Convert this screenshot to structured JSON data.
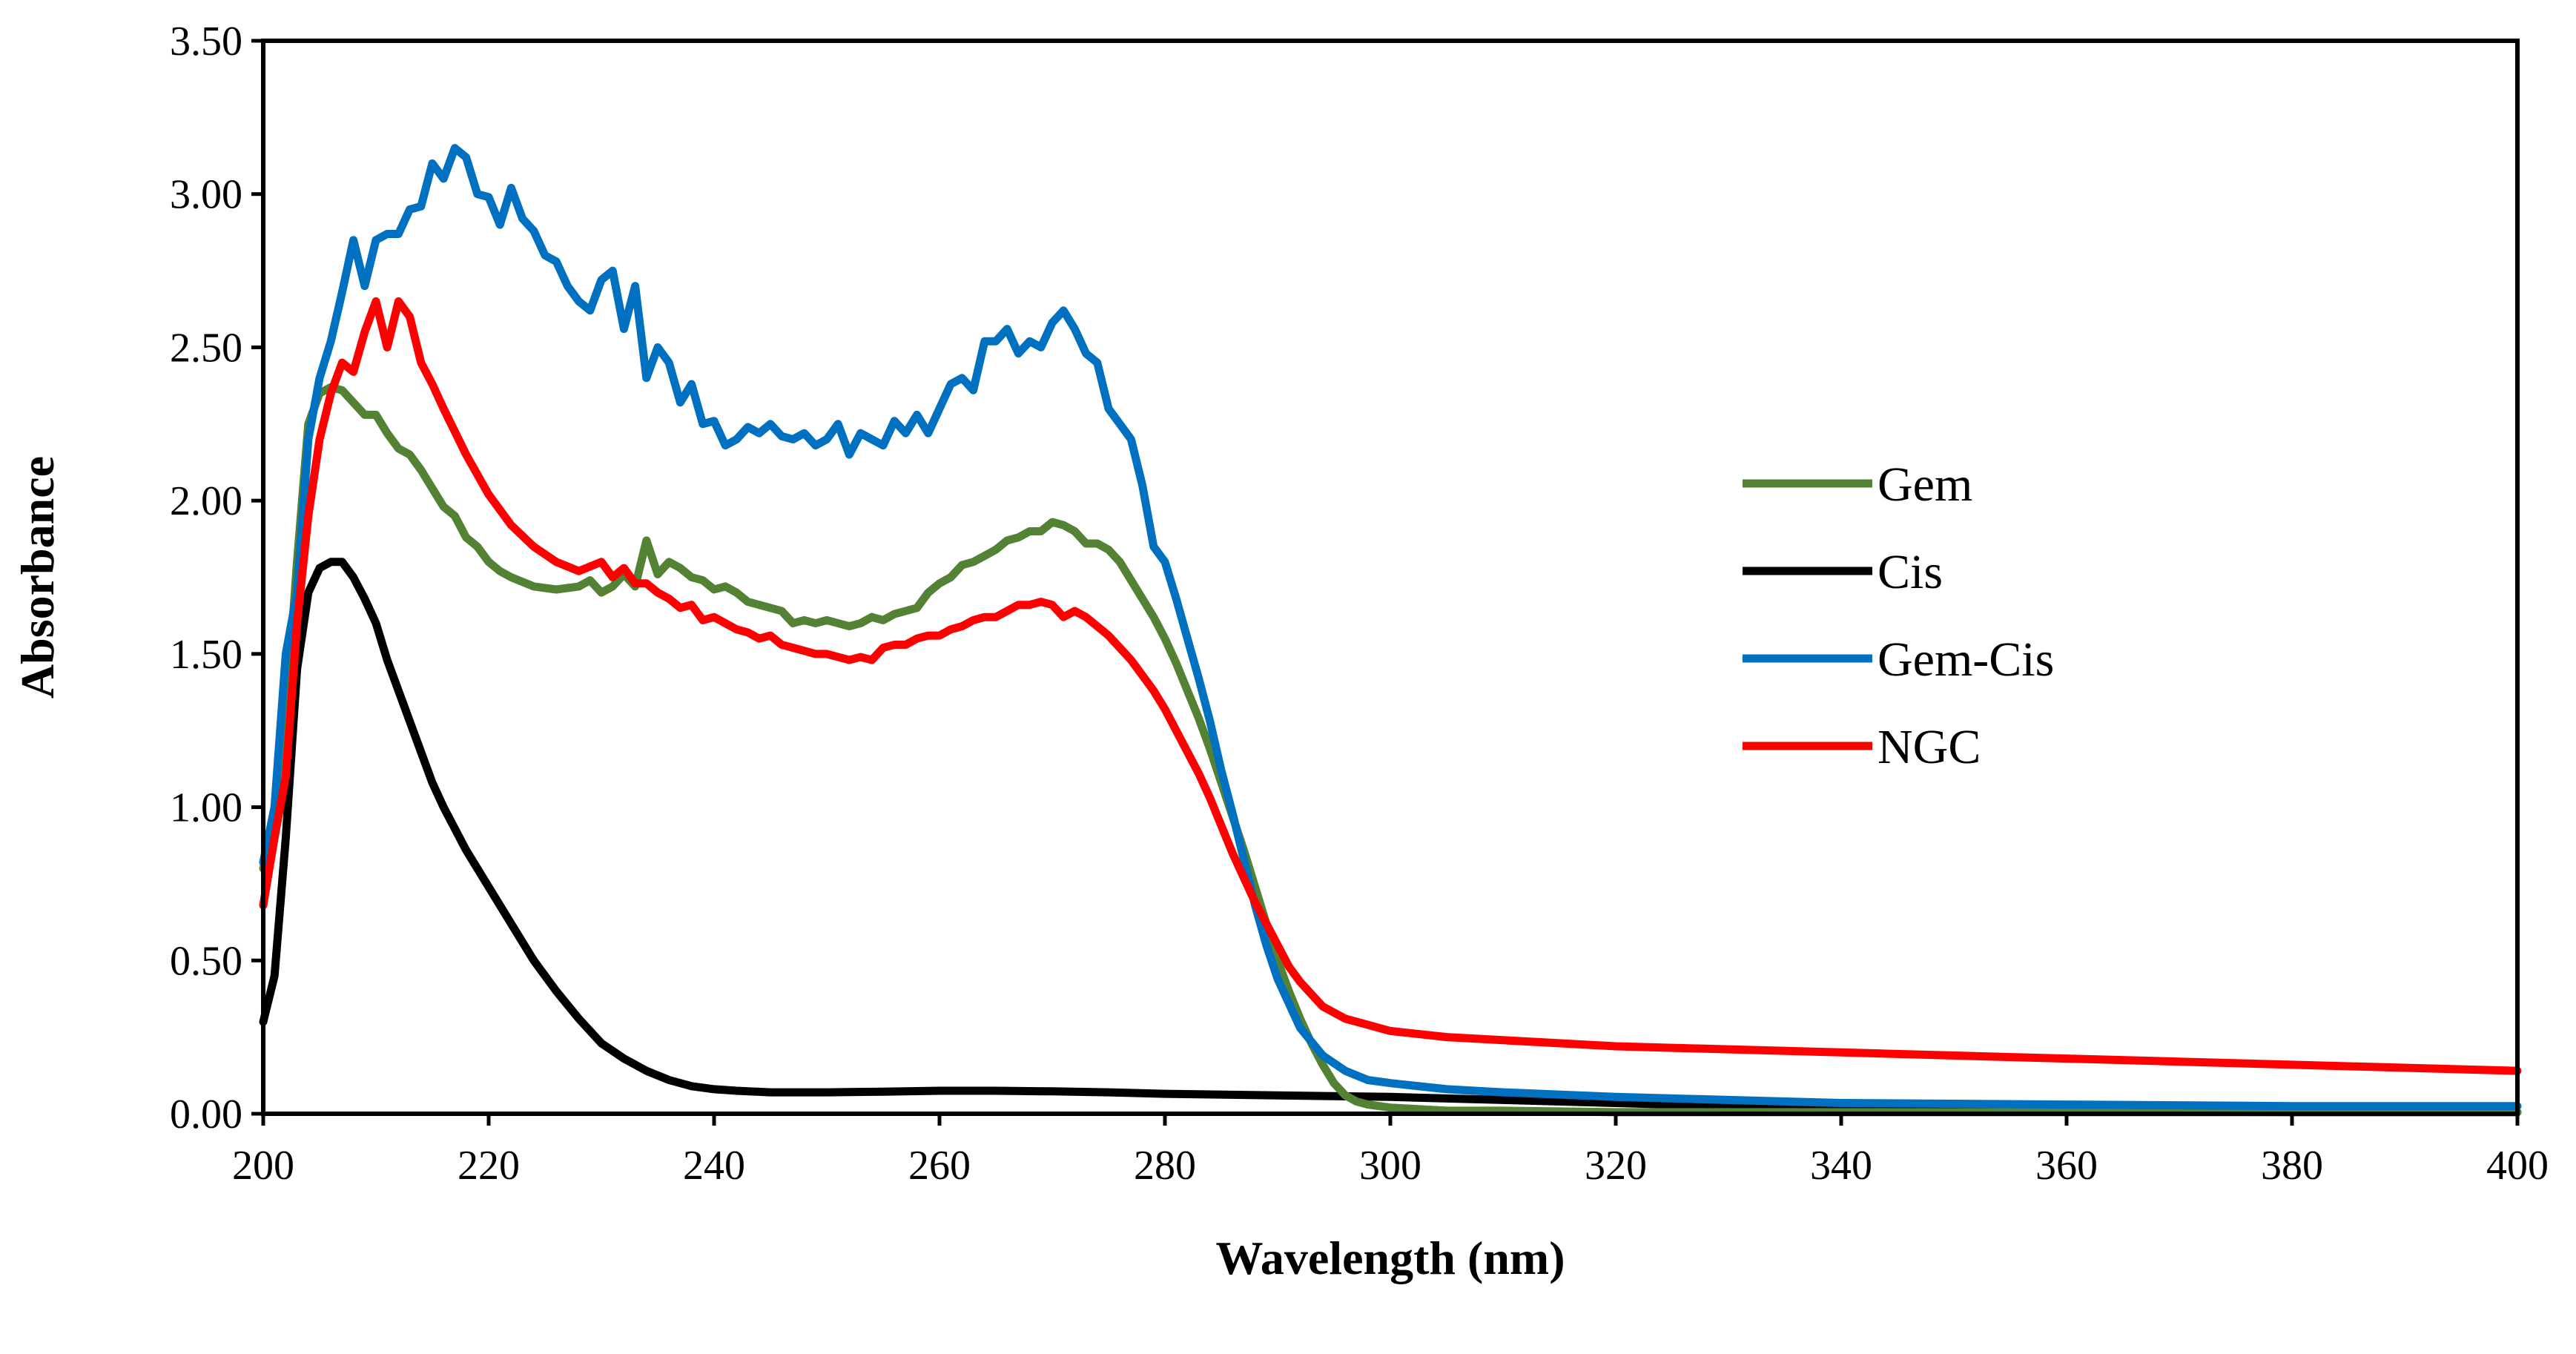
{
  "chart_data": {
    "type": "line",
    "title": "",
    "xlabel": "Wavelength (nm)",
    "ylabel": "Absorbance",
    "xlim": [
      200,
      400
    ],
    "ylim": [
      0,
      3.5
    ],
    "xticks": [
      200,
      220,
      240,
      260,
      280,
      300,
      320,
      340,
      360,
      380,
      400
    ],
    "xtick_labels": [
      "200",
      "220",
      "240",
      "260",
      "280",
      "300",
      "320",
      "340",
      "360",
      "380",
      "400"
    ],
    "yticks": [
      0,
      0.5,
      1,
      1.5,
      2,
      2.5,
      3,
      3.5
    ],
    "ytick_labels": [
      "0.00",
      "0.50",
      "1.00",
      "1.50",
      "2.00",
      "2.50",
      "3.00",
      "3.50"
    ],
    "grid": false,
    "legend_position": "right",
    "series": [
      {
        "name": "Gem",
        "color": "#548235",
        "x": [
          200,
          201,
          202,
          203,
          204,
          205,
          206,
          207,
          208,
          209,
          210,
          211,
          212,
          213,
          214,
          215,
          216,
          217,
          218,
          219,
          220,
          221,
          222,
          224,
          226,
          228,
          229,
          230,
          231,
          232,
          233,
          234,
          235,
          236,
          237,
          238,
          239,
          240,
          241,
          242,
          243,
          244,
          245,
          246,
          247,
          248,
          249,
          250,
          251,
          252,
          253,
          254,
          255,
          256,
          257,
          258,
          259,
          260,
          261,
          262,
          263,
          264,
          265,
          266,
          267,
          268,
          269,
          270,
          271,
          272,
          273,
          274,
          275,
          276,
          277,
          278,
          279,
          280,
          281,
          282,
          283,
          284,
          285,
          286,
          287,
          288,
          289,
          290,
          291,
          292,
          293,
          294,
          295,
          296,
          297,
          298,
          300,
          305,
          310,
          320,
          340,
          360,
          380,
          400
        ],
        "values": [
          0.8,
          0.95,
          1.3,
          1.8,
          2.25,
          2.35,
          2.37,
          2.36,
          2.32,
          2.28,
          2.28,
          2.22,
          2.17,
          2.15,
          2.1,
          2.04,
          1.98,
          1.95,
          1.88,
          1.85,
          1.8,
          1.77,
          1.75,
          1.72,
          1.71,
          1.72,
          1.74,
          1.7,
          1.72,
          1.76,
          1.72,
          1.87,
          1.76,
          1.8,
          1.78,
          1.75,
          1.74,
          1.71,
          1.72,
          1.7,
          1.67,
          1.66,
          1.65,
          1.64,
          1.6,
          1.61,
          1.6,
          1.61,
          1.6,
          1.59,
          1.6,
          1.62,
          1.61,
          1.63,
          1.64,
          1.65,
          1.7,
          1.73,
          1.75,
          1.79,
          1.8,
          1.82,
          1.84,
          1.87,
          1.88,
          1.9,
          1.9,
          1.93,
          1.92,
          1.9,
          1.86,
          1.86,
          1.84,
          1.8,
          1.74,
          1.68,
          1.62,
          1.55,
          1.47,
          1.38,
          1.29,
          1.19,
          1.08,
          0.97,
          0.86,
          0.74,
          0.62,
          0.5,
          0.4,
          0.31,
          0.23,
          0.16,
          0.1,
          0.06,
          0.04,
          0.03,
          0.02,
          0.01,
          0.01,
          0.005,
          0.005,
          0.005,
          0.005,
          0.005
        ]
      },
      {
        "name": "Cis",
        "color": "#000000",
        "x": [
          200,
          201,
          202,
          203,
          204,
          205,
          206,
          207,
          208,
          209,
          210,
          211,
          212,
          213,
          214,
          215,
          216,
          217,
          218,
          220,
          222,
          224,
          226,
          228,
          230,
          232,
          234,
          236,
          238,
          240,
          242,
          245,
          250,
          255,
          260,
          265,
          270,
          275,
          280,
          290,
          300,
          310,
          320,
          330,
          340,
          360,
          380,
          400
        ],
        "values": [
          0.3,
          0.45,
          0.9,
          1.45,
          1.7,
          1.78,
          1.8,
          1.8,
          1.75,
          1.68,
          1.6,
          1.48,
          1.38,
          1.28,
          1.18,
          1.08,
          1.0,
          0.93,
          0.86,
          0.74,
          0.62,
          0.5,
          0.4,
          0.31,
          0.23,
          0.18,
          0.14,
          0.11,
          0.09,
          0.08,
          0.075,
          0.07,
          0.07,
          0.072,
          0.075,
          0.075,
          0.073,
          0.07,
          0.065,
          0.06,
          0.055,
          0.045,
          0.035,
          0.025,
          0.018,
          0.01,
          0.005,
          0.005
        ]
      },
      {
        "name": "Gem-Cis",
        "color": "#0070C0",
        "x": [
          200,
          201,
          202,
          203,
          204,
          205,
          206,
          207,
          208,
          209,
          210,
          211,
          212,
          213,
          214,
          215,
          216,
          217,
          218,
          219,
          220,
          221,
          222,
          223,
          224,
          225,
          226,
          227,
          228,
          229,
          230,
          231,
          232,
          233,
          234,
          235,
          236,
          237,
          238,
          239,
          240,
          241,
          242,
          243,
          244,
          245,
          246,
          247,
          248,
          249,
          250,
          251,
          252,
          253,
          254,
          255,
          256,
          257,
          258,
          259,
          260,
          261,
          262,
          263,
          264,
          265,
          266,
          267,
          268,
          269,
          270,
          271,
          272,
          273,
          274,
          275,
          276,
          277,
          278,
          279,
          280,
          281,
          282,
          283,
          284,
          285,
          286,
          287,
          288,
          289,
          290,
          292,
          294,
          296,
          298,
          300,
          305,
          310,
          320,
          340,
          360,
          380,
          400
        ],
        "values": [
          0.82,
          1.0,
          1.5,
          1.7,
          2.2,
          2.4,
          2.52,
          2.68,
          2.85,
          2.7,
          2.85,
          2.87,
          2.87,
          2.95,
          2.96,
          3.1,
          3.05,
          3.15,
          3.12,
          3.0,
          2.99,
          2.9,
          3.02,
          2.92,
          2.88,
          2.8,
          2.78,
          2.7,
          2.65,
          2.62,
          2.72,
          2.75,
          2.56,
          2.7,
          2.4,
          2.5,
          2.45,
          2.32,
          2.38,
          2.25,
          2.26,
          2.18,
          2.2,
          2.24,
          2.22,
          2.25,
          2.21,
          2.2,
          2.22,
          2.18,
          2.2,
          2.25,
          2.15,
          2.22,
          2.2,
          2.18,
          2.26,
          2.22,
          2.28,
          2.22,
          2.3,
          2.38,
          2.4,
          2.36,
          2.52,
          2.52,
          2.56,
          2.48,
          2.52,
          2.5,
          2.58,
          2.62,
          2.56,
          2.48,
          2.45,
          2.3,
          2.25,
          2.2,
          2.05,
          1.85,
          1.8,
          1.68,
          1.55,
          1.42,
          1.28,
          1.12,
          0.98,
          0.83,
          0.68,
          0.55,
          0.44,
          0.28,
          0.19,
          0.14,
          0.11,
          0.1,
          0.08,
          0.07,
          0.055,
          0.035,
          0.03,
          0.025,
          0.025
        ]
      },
      {
        "name": "NGC",
        "color": "#FF0000",
        "x": [
          200,
          201,
          202,
          203,
          204,
          205,
          206,
          207,
          208,
          209,
          210,
          211,
          212,
          213,
          214,
          215,
          216,
          218,
          220,
          222,
          224,
          226,
          228,
          230,
          231,
          232,
          233,
          234,
          235,
          236,
          237,
          238,
          239,
          240,
          241,
          242,
          243,
          244,
          245,
          246,
          247,
          248,
          249,
          250,
          251,
          252,
          253,
          254,
          255,
          256,
          257,
          258,
          259,
          260,
          261,
          262,
          263,
          264,
          265,
          266,
          267,
          268,
          269,
          270,
          271,
          272,
          273,
          274,
          275,
          276,
          277,
          278,
          279,
          280,
          281,
          282,
          283,
          284,
          285,
          286,
          287,
          288,
          289,
          290,
          291,
          292,
          293,
          294,
          296,
          298,
          300,
          305,
          310,
          320,
          340,
          360,
          380,
          400
        ],
        "values": [
          0.68,
          0.9,
          1.1,
          1.6,
          1.95,
          2.2,
          2.35,
          2.45,
          2.42,
          2.55,
          2.65,
          2.5,
          2.65,
          2.6,
          2.45,
          2.38,
          2.3,
          2.15,
          2.02,
          1.92,
          1.85,
          1.8,
          1.77,
          1.8,
          1.75,
          1.78,
          1.73,
          1.73,
          1.7,
          1.68,
          1.65,
          1.66,
          1.61,
          1.62,
          1.6,
          1.58,
          1.57,
          1.55,
          1.56,
          1.53,
          1.52,
          1.51,
          1.5,
          1.5,
          1.49,
          1.48,
          1.49,
          1.48,
          1.52,
          1.53,
          1.53,
          1.55,
          1.56,
          1.56,
          1.58,
          1.59,
          1.61,
          1.62,
          1.62,
          1.64,
          1.66,
          1.66,
          1.67,
          1.66,
          1.62,
          1.64,
          1.62,
          1.59,
          1.56,
          1.52,
          1.48,
          1.43,
          1.38,
          1.32,
          1.25,
          1.18,
          1.11,
          1.03,
          0.94,
          0.85,
          0.77,
          0.69,
          0.62,
          0.55,
          0.48,
          0.43,
          0.39,
          0.35,
          0.31,
          0.29,
          0.27,
          0.25,
          0.24,
          0.22,
          0.2,
          0.18,
          0.16,
          0.14
        ]
      }
    ]
  }
}
